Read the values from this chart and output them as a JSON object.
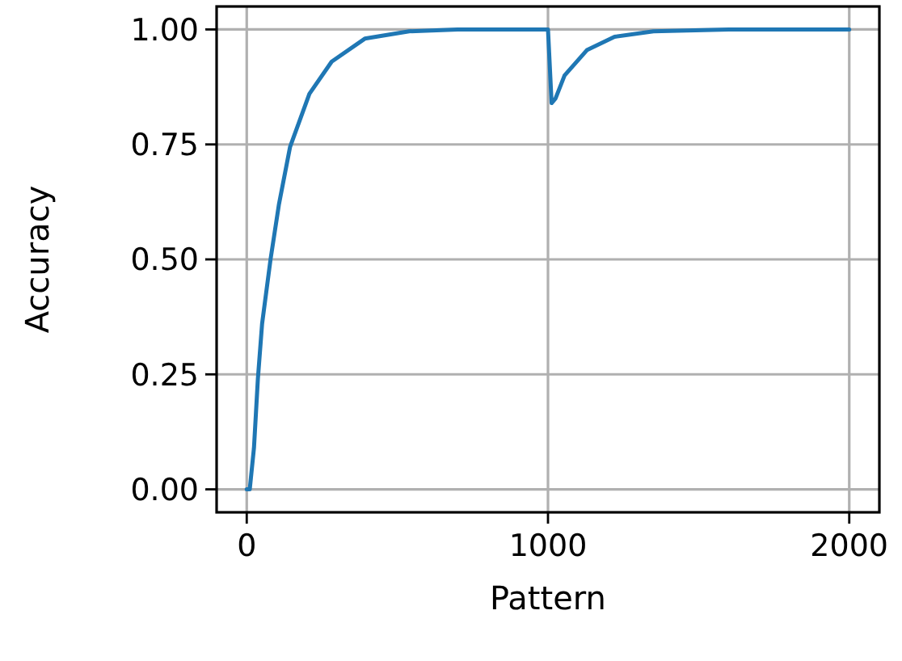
{
  "chart_data": {
    "type": "line",
    "xlabel": "Pattern",
    "ylabel": "Accuracy",
    "x": [
      0,
      10,
      24,
      37,
      51,
      79,
      107,
      144,
      208,
      282,
      392,
      539,
      700,
      1000,
      1012,
      1025,
      1055,
      1129,
      1221,
      1350,
      1600,
      2000
    ],
    "series": [
      {
        "color": "#1f77b4",
        "values": [
          0,
          0,
          0.09,
          0.24,
          0.36,
          0.5,
          0.62,
          0.745,
          0.86,
          0.93,
          0.98,
          0.996,
          1,
          1,
          0.84,
          0.85,
          0.9,
          0.955,
          0.984,
          0.996,
          1,
          1
        ]
      }
    ],
    "xlim": [
      -100,
      2100
    ],
    "ylim": [
      -0.05,
      1.05
    ],
    "xticks": [
      0,
      1000,
      2000
    ],
    "yticks": [
      {
        "value": 0,
        "label": "0.00"
      },
      {
        "value": 0.25,
        "label": "0.25"
      },
      {
        "value": 0.5,
        "label": "0.50"
      },
      {
        "value": 0.75,
        "label": "0.75"
      },
      {
        "value": 1,
        "label": "1.00"
      }
    ],
    "grid": true,
    "marker": "none",
    "line_style": "solid"
  }
}
